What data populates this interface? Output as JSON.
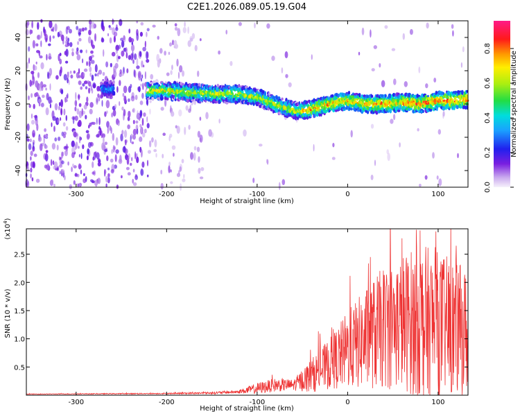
{
  "title": "C2E1.2026.089.05.19.G04",
  "chart_data": [
    {
      "type": "heatmap",
      "xlabel": "Height of straight line (km)",
      "ylabel": "Frequency (Hz)",
      "xlim": [
        -355,
        133
      ],
      "ylim": [
        -50,
        50
      ],
      "xticks": [
        -300,
        -200,
        -100,
        0,
        100
      ],
      "xtick_labels": [
        "-300",
        "-200",
        "-100",
        "0",
        "100"
      ],
      "yticks": [
        -40,
        -20,
        0,
        20,
        40
      ],
      "ytick_labels": [
        "-40",
        "-20",
        "0",
        "20",
        "40"
      ],
      "trace": {
        "name": "dominant frequency ridge",
        "x": [
          -270,
          -220,
          -200,
          -150,
          -120,
          -100,
          -80,
          -60,
          -50,
          -40,
          -20,
          0,
          20,
          40,
          60,
          80,
          100,
          120,
          133
        ],
        "y": [
          9,
          8,
          8,
          6,
          6,
          4,
          0,
          -4,
          -4,
          -3,
          0,
          2,
          0,
          0,
          1,
          0,
          2,
          2,
          3
        ]
      },
      "colorbar": {
        "label": "Normalized spectral amplitude",
        "range": [
          0,
          0.96
        ],
        "ticks": [
          0.0,
          0.2,
          0.4,
          0.6,
          0.8
        ],
        "tick_labels": [
          "0.0",
          "0.2",
          "0.4",
          "0.6",
          "0.8"
        ]
      }
    },
    {
      "type": "line",
      "xlabel": "Height of straight line (km)",
      "ylabel": "SNR (10 * v/v)",
      "y_multiplier_label": "(x10^4)",
      "y_multiplier_base": "(x10",
      "y_multiplier_exp": "4",
      "xlim": [
        -355,
        133
      ],
      "ylim": [
        0,
        2.95
      ],
      "xticks": [
        -300,
        -200,
        -100,
        0,
        100
      ],
      "xtick_labels": [
        "-300",
        "-200",
        "-100",
        "0",
        "100"
      ],
      "yticks": [
        0.5,
        1.0,
        1.5,
        2.0,
        2.5
      ],
      "ytick_labels": [
        "0.5",
        "1.0",
        "1.5",
        "2.0",
        "2.5"
      ],
      "series": [
        {
          "name": "SNR",
          "color": "#ee3333",
          "envelope_x": [
            -355,
            -200,
            -150,
            -120,
            -100,
            -80,
            -60,
            -40,
            -20,
            0,
            20,
            40,
            60,
            80,
            100,
            120,
            133
          ],
          "envelope_mean": [
            0.02,
            0.03,
            0.04,
            0.06,
            0.12,
            0.18,
            0.18,
            0.35,
            0.55,
            0.8,
            1.0,
            1.2,
            1.3,
            1.3,
            1.25,
            1.2,
            1.1
          ],
          "envelope_spread": [
            0.005,
            0.01,
            0.02,
            0.03,
            0.1,
            0.12,
            0.1,
            0.3,
            0.45,
            0.7,
            0.9,
            1.1,
            1.2,
            1.4,
            1.3,
            1.2,
            1.1
          ],
          "peak_values": [
            {
              "x": 80,
              "y": 2.92
            },
            {
              "x": 60,
              "y": 2.78
            },
            {
              "x": 25,
              "y": 2.45
            },
            {
              "x": 120,
              "y": 2.65
            }
          ]
        }
      ]
    }
  ]
}
